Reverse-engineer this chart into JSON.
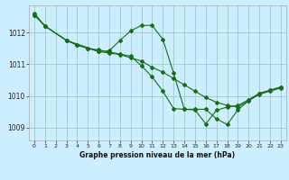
{
  "title": "Graphe pression niveau de la mer (hPa)",
  "background_color": "#cceeff",
  "grid_color": "#99cccc",
  "line_color": "#1a6b1a",
  "xlim": [
    -0.5,
    23.5
  ],
  "ylim": [
    1008.6,
    1012.85
  ],
  "yticks": [
    1009,
    1010,
    1011,
    1012
  ],
  "xticks": [
    0,
    1,
    2,
    3,
    4,
    5,
    6,
    7,
    8,
    9,
    10,
    11,
    12,
    13,
    14,
    15,
    16,
    17,
    18,
    19,
    20,
    21,
    22,
    23
  ],
  "series": [
    {
      "x": [
        0,
        1,
        3,
        4,
        5,
        6,
        7,
        8,
        9,
        10,
        11,
        12,
        13,
        14,
        15,
        16,
        17,
        18,
        19,
        20,
        21,
        22,
        23
      ],
      "y": [
        1012.55,
        1012.2,
        1011.75,
        1011.6,
        1011.5,
        1011.4,
        1011.35,
        1011.3,
        1011.2,
        1011.1,
        1010.9,
        1010.75,
        1010.55,
        1010.35,
        1010.15,
        1009.95,
        1009.8,
        1009.7,
        1009.65,
        1009.85,
        1010.05,
        1010.15,
        1010.25
      ],
      "marker": "D",
      "markersize": 2.0,
      "linewidth": 0.8
    },
    {
      "x": [
        0,
        1,
        3,
        4,
        5,
        6,
        7,
        8,
        9,
        10,
        11,
        12,
        13,
        14,
        15,
        16,
        17,
        18,
        19,
        20,
        21,
        22,
        23
      ],
      "y": [
        1012.55,
        1012.2,
        1011.75,
        1011.6,
        1011.5,
        1011.45,
        1011.38,
        1011.32,
        1011.25,
        1010.95,
        1010.6,
        1010.15,
        1009.6,
        1009.58,
        1009.56,
        1009.12,
        1009.55,
        1009.65,
        1009.7,
        1009.88,
        1010.08,
        1010.18,
        1010.28
      ],
      "marker": "D",
      "markersize": 2.0,
      "linewidth": 0.8
    },
    {
      "x": [
        0,
        1,
        3,
        6,
        7,
        8,
        9,
        10,
        11,
        12,
        13,
        14,
        15,
        16,
        17,
        18,
        19,
        20,
        21,
        22,
        23
      ],
      "y": [
        1012.6,
        1012.2,
        1011.75,
        1011.4,
        1011.42,
        1011.75,
        1012.05,
        1012.22,
        1012.22,
        1011.78,
        1010.72,
        1009.58,
        1009.58,
        1009.58,
        1009.28,
        1009.1,
        1009.56,
        1009.85,
        1010.08,
        1010.18,
        1010.28
      ],
      "marker": "D",
      "markersize": 2.0,
      "linewidth": 0.8
    }
  ]
}
